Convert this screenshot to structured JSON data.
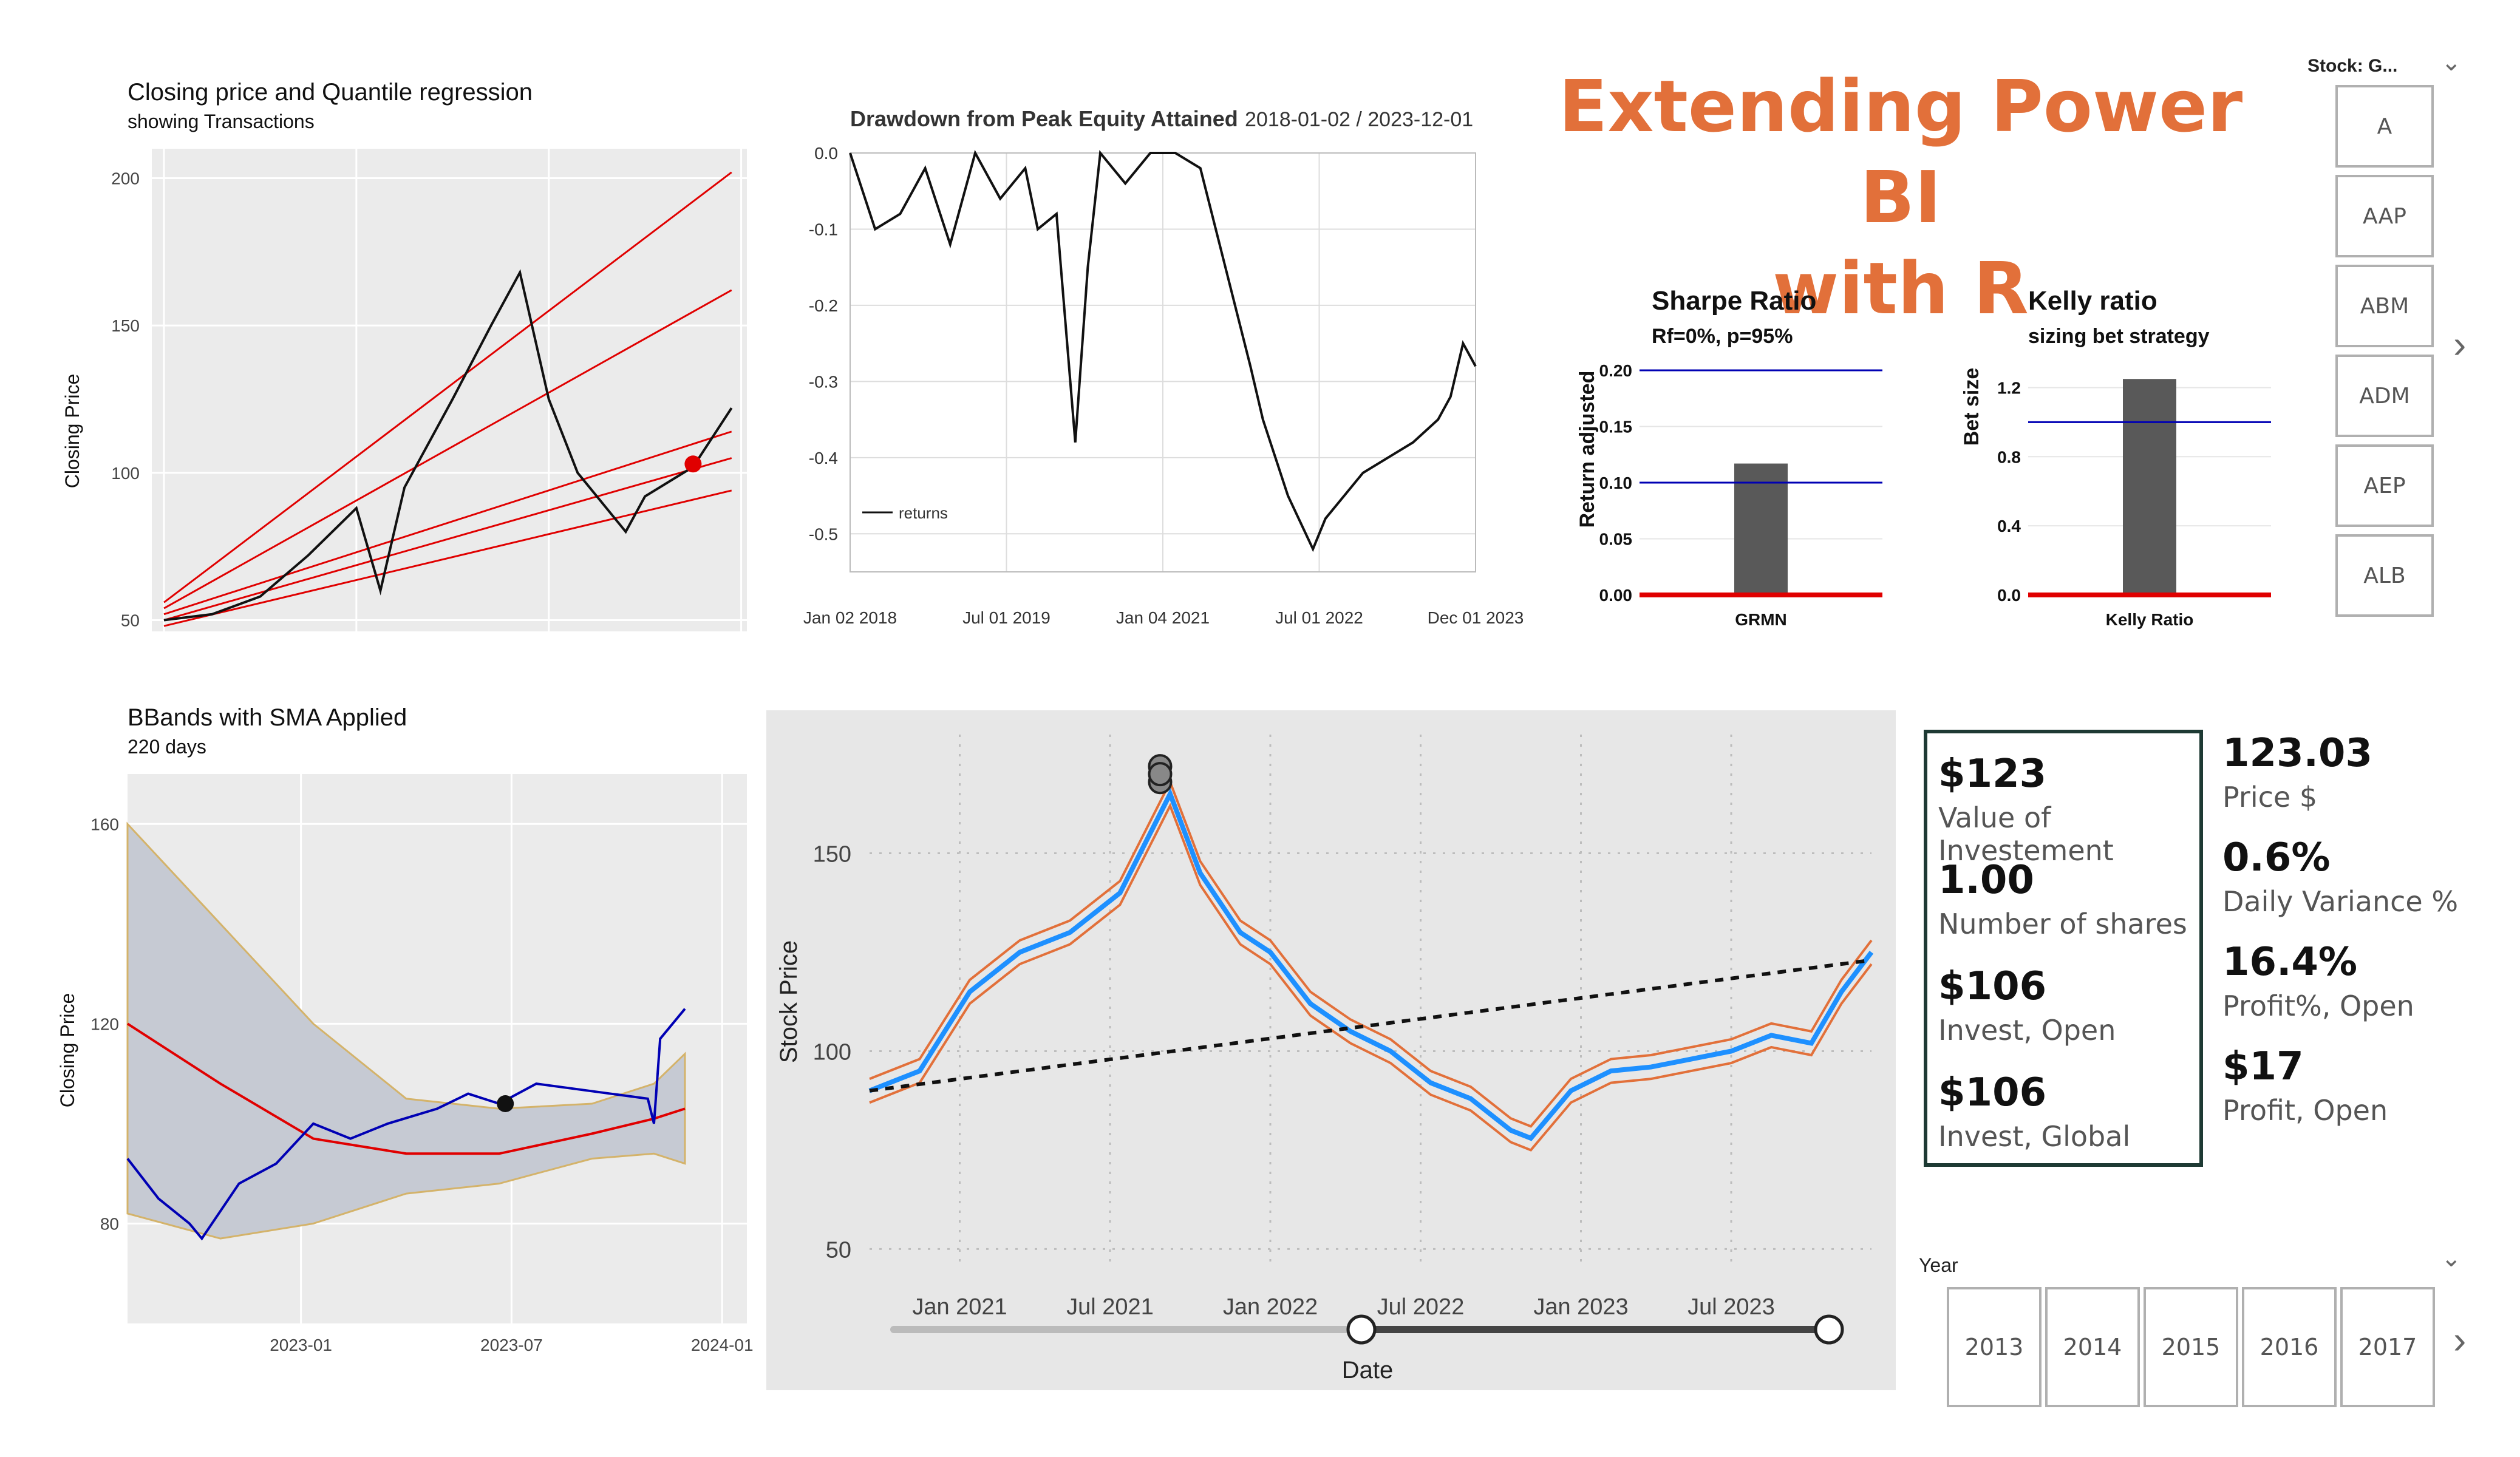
{
  "title": {
    "line1": "Extending Power BI",
    "line2": "with R"
  },
  "quantile_chart": {
    "title": "Closing price and Quantile regression",
    "subtitle": "showing Transactions",
    "ylabel": "Closing Price",
    "chart_data": {
      "type": "line",
      "ylabel": "Closing Price",
      "ylim": [
        40,
        210
      ],
      "xlim": [
        2018,
        2024
      ],
      "x_ticks": [
        "2018",
        "2020",
        "2022",
        "2024"
      ],
      "y_ticks": [
        "50",
        "100",
        "150",
        "200"
      ],
      "series": [
        {
          "x": [
            2018,
            2018.5,
            2019,
            2019.5,
            2020,
            2020.25,
            2020.5,
            2021,
            2021.4,
            2021.7,
            2022,
            2022.3,
            2022.8,
            2023,
            2023.5,
            2023.9
          ],
          "y": [
            50,
            52,
            58,
            72,
            88,
            60,
            95,
            125,
            150,
            168,
            125,
            100,
            80,
            92,
            102,
            122
          ]
        }
      ],
      "quantile_lines": [
        [
          [
            2018,
            56
          ],
          [
            2023.9,
            202
          ]
        ],
        [
          [
            2018,
            54
          ],
          [
            2023.9,
            162
          ]
        ],
        [
          [
            2018,
            52
          ],
          [
            2023.9,
            114
          ]
        ],
        [
          [
            2018,
            50
          ],
          [
            2023.9,
            105
          ]
        ],
        [
          [
            2018,
            48
          ],
          [
            2023.9,
            94
          ]
        ]
      ],
      "marker": {
        "x": 2023.5,
        "y": 103
      }
    }
  },
  "drawdown_chart": {
    "title": "Drawdown from Peak Equity Attained",
    "date_range": "2018-01-02 / 2023-12-01",
    "legend": "returns",
    "chart_data": {
      "type": "line",
      "ylim": [
        -0.55,
        0
      ],
      "y_ticks": [
        "0.0",
        "-0.1",
        "-0.2",
        "-0.3",
        "-0.4",
        "-0.5"
      ],
      "x_ticks": [
        "Jan 02 2018",
        "Jul 01 2019",
        "Jan 04 2021",
        "Jul 01 2022",
        "Dec 01 2023"
      ],
      "series": [
        {
          "name": "returns",
          "x": [
            0,
            0.04,
            0.08,
            0.12,
            0.16,
            0.2,
            0.24,
            0.28,
            0.3,
            0.33,
            0.36,
            0.38,
            0.4,
            0.44,
            0.48,
            0.52,
            0.56,
            0.6,
            0.64,
            0.66,
            0.7,
            0.74,
            0.76,
            0.8,
            0.82,
            0.86,
            0.9,
            0.94,
            0.96,
            0.98,
            1.0
          ],
          "y": [
            0,
            -0.1,
            -0.08,
            -0.02,
            -0.12,
            0,
            -0.06,
            -0.02,
            -0.1,
            -0.08,
            -0.38,
            -0.15,
            0,
            -0.04,
            0,
            0,
            -0.02,
            -0.15,
            -0.28,
            -0.35,
            -0.45,
            -0.52,
            -0.48,
            -0.44,
            -0.42,
            -0.4,
            -0.38,
            -0.35,
            -0.32,
            -0.25,
            -0.28
          ]
        }
      ]
    }
  },
  "sharpe_chart": {
    "title": "Sharpe Ratio",
    "subtitle": "Rf=0%, p=95%",
    "ylabel": "Return adjusted",
    "chart_data": {
      "type": "bar",
      "categories": [
        "GRMN"
      ],
      "values": [
        0.117
      ],
      "ylim": [
        0,
        0.2
      ],
      "y_ticks": [
        "0.00",
        "0.05",
        "0.10",
        "0.15",
        "0.20"
      ],
      "hlines": [
        0.1,
        0.2
      ]
    }
  },
  "kelly_chart": {
    "title": "Kelly ratio",
    "subtitle": "sizing bet strategy",
    "ylabel": "Bet size",
    "chart_data": {
      "type": "bar",
      "categories": [
        "Kelly Ratio"
      ],
      "values": [
        1.25
      ],
      "ylim": [
        0,
        1.3
      ],
      "y_ticks": [
        "0.0",
        "0.4",
        "0.8",
        "1.2"
      ],
      "hlines": [
        1.0
      ]
    }
  },
  "bbands_chart": {
    "title": "BBands with SMA Applied",
    "subtitle": "220 days",
    "ylabel": "Closing Price",
    "chart_data": {
      "type": "area",
      "ylim": [
        60,
        170
      ],
      "y_ticks": [
        "80",
        "120",
        "160"
      ],
      "x_ticks": [
        "2023-01",
        "2023-07",
        "2024-01"
      ],
      "x_tick_pos": [
        0.28,
        0.62,
        0.96
      ],
      "band_upper": [
        [
          0,
          160
        ],
        [
          0.15,
          140
        ],
        [
          0.3,
          120
        ],
        [
          0.45,
          105
        ],
        [
          0.6,
          103
        ],
        [
          0.75,
          104
        ],
        [
          0.85,
          108
        ],
        [
          0.9,
          114
        ]
      ],
      "band_lower": [
        [
          0,
          82
        ],
        [
          0.15,
          77
        ],
        [
          0.3,
          80
        ],
        [
          0.45,
          86
        ],
        [
          0.6,
          88
        ],
        [
          0.75,
          93
        ],
        [
          0.85,
          94
        ],
        [
          0.9,
          92
        ]
      ],
      "sma": [
        [
          0,
          120
        ],
        [
          0.15,
          108
        ],
        [
          0.3,
          97
        ],
        [
          0.45,
          94
        ],
        [
          0.6,
          94
        ],
        [
          0.75,
          98
        ],
        [
          0.85,
          101
        ],
        [
          0.9,
          103
        ]
      ],
      "close": [
        [
          0,
          93
        ],
        [
          0.05,
          85
        ],
        [
          0.1,
          80
        ],
        [
          0.12,
          77
        ],
        [
          0.18,
          88
        ],
        [
          0.24,
          92
        ],
        [
          0.3,
          100
        ],
        [
          0.36,
          97
        ],
        [
          0.42,
          100
        ],
        [
          0.5,
          103
        ],
        [
          0.55,
          106
        ],
        [
          0.6,
          104
        ],
        [
          0.66,
          108
        ],
        [
          0.72,
          107
        ],
        [
          0.78,
          106
        ],
        [
          0.84,
          105
        ],
        [
          0.85,
          100
        ],
        [
          0.86,
          117
        ],
        [
          0.9,
          123
        ]
      ],
      "marker": {
        "x": 0.61,
        "y": 104
      }
    }
  },
  "price_chart": {
    "ylabel": "Stock Price",
    "xlabel": "Date",
    "chart_data": {
      "type": "line",
      "ylim": [
        45,
        180
      ],
      "y_ticks": [
        "50",
        "100",
        "150"
      ],
      "x_ticks": [
        "Jan 2021",
        "Jul 2021",
        "Jan 2022",
        "Jul 2022",
        "Jan 2023",
        "Jul 2023"
      ],
      "x_tick_pos": [
        0.09,
        0.24,
        0.4,
        0.55,
        0.71,
        0.86
      ],
      "series": [
        {
          "name": "price",
          "x": [
            0,
            0.05,
            0.1,
            0.15,
            0.2,
            0.25,
            0.28,
            0.3,
            0.33,
            0.37,
            0.4,
            0.44,
            0.48,
            0.52,
            0.56,
            0.6,
            0.64,
            0.66,
            0.7,
            0.74,
            0.78,
            0.82,
            0.86,
            0.9,
            0.94,
            0.97,
            1.0
          ],
          "y": [
            90,
            95,
            115,
            125,
            130,
            140,
            155,
            165,
            145,
            130,
            125,
            112,
            105,
            100,
            92,
            88,
            80,
            78,
            90,
            95,
            96,
            98,
            100,
            104,
            102,
            115,
            125
          ]
        }
      ],
      "trend": [
        [
          0,
          90
        ],
        [
          1,
          123
        ]
      ],
      "markers": [
        [
          0.29,
          172
        ],
        [
          0.29,
          168
        ],
        [
          0.29,
          170
        ]
      ]
    },
    "slider": {
      "min": 0,
      "left": 0.5,
      "right": 1.0
    }
  },
  "cards": [
    {
      "value": "$123",
      "label": "Value of Investement"
    },
    {
      "value": "1.00",
      "label": "Number of shares"
    },
    {
      "value": "$106",
      "label": "Invest, Open"
    },
    {
      "value": "$106",
      "label": "Invest, Global"
    }
  ],
  "cards_right": [
    {
      "value": "123.03",
      "label": "Price $"
    },
    {
      "value": "0.6%",
      "label": "Daily Variance %"
    },
    {
      "value": "16.4%",
      "label": "Profit%, Open"
    },
    {
      "value": "$17",
      "label": "Profit, Open"
    }
  ],
  "stock_slicer": {
    "label": "Stock: G...",
    "items": [
      "A",
      "AAP",
      "ABM",
      "ADM",
      "AEP",
      "ALB"
    ]
  },
  "year_slicer": {
    "label": "Year",
    "items": [
      "2013",
      "2014",
      "2015",
      "2016",
      "2017"
    ]
  },
  "colors": {
    "accent": "#e2703a",
    "red": "#e00000",
    "blue": "#1a1aff",
    "navy": "#0000b4",
    "price_blue": "#1e90ff",
    "price_orange": "#e2703a",
    "card_border": "#1e3a34"
  }
}
